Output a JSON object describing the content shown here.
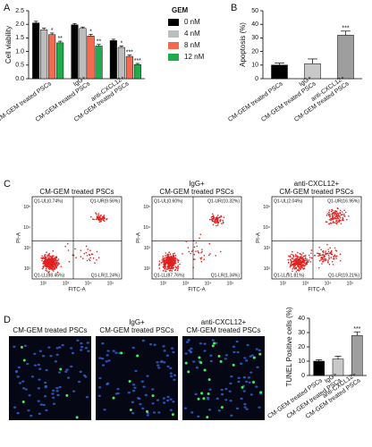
{
  "panel_labels": [
    "A",
    "B",
    "C",
    "D"
  ],
  "chart_data": [
    {
      "type": "bar",
      "ylabel": "Cell viability",
      "categories": [
        [
          "CM-GEM treated PSCs"
        ],
        [
          "IgG+",
          "CM-GEM treated PSCs"
        ],
        [
          "anti-CXCL12+",
          "CM-GEM treated PSCs"
        ]
      ],
      "legend_title": "GEM",
      "series": [
        {
          "name": "0 nM",
          "color": "#000000",
          "values": [
            2.05,
            1.98,
            1.4
          ],
          "errors": [
            0.06,
            0.05,
            0.05
          ],
          "annotations": [
            null,
            null,
            null
          ]
        },
        {
          "name": "4 nM",
          "color": "#bdbdbd",
          "values": [
            1.8,
            1.85,
            1.15
          ],
          "errors": [
            0.06,
            0.05,
            0.05
          ],
          "annotations": [
            null,
            null,
            "*"
          ]
        },
        {
          "name": "8 nM",
          "color": "#f26b4f",
          "values": [
            1.62,
            1.57,
            0.82
          ],
          "errors": [
            0.06,
            0.06,
            0.05
          ],
          "annotations": [
            "*",
            "*",
            "***"
          ]
        },
        {
          "name": "12 nM",
          "color": "#1fad4b",
          "values": [
            1.32,
            1.2,
            0.52
          ],
          "errors": [
            0.06,
            0.06,
            0.04
          ],
          "annotations": [
            "**",
            "**",
            "***"
          ]
        }
      ],
      "ylim": [
        0,
        2.5
      ],
      "yticks": [
        {
          "value": 0,
          "label": "0.0"
        },
        {
          "value": 0.5,
          "label": "0.5"
        },
        {
          "value": 1,
          "label": "1.0"
        },
        {
          "value": 1.5,
          "label": "1.5"
        },
        {
          "value": 2,
          "label": "2.0"
        },
        {
          "value": 2.5,
          "label": "2.5"
        }
      ]
    },
    {
      "type": "bar",
      "ylabel": "Apoptosis (%)",
      "categories": [
        [
          "CM-GEM treated PSCs"
        ],
        [
          "IgG+",
          "CM-GEM treated PSCs"
        ],
        [
          "anti-CXCL12+",
          "CM-GEM treated PSCs"
        ]
      ],
      "values": [
        10,
        11,
        32
      ],
      "errors": [
        1.5,
        3.5,
        3
      ],
      "annotations": [
        null,
        null,
        "***"
      ],
      "colors": [
        "#000000",
        "#c8c8c8",
        "#9e9e9e"
      ],
      "ylim": [
        0,
        50
      ],
      "yticks": [
        0,
        10,
        20,
        30,
        40,
        50
      ]
    },
    {
      "type": "bar",
      "ylabel": "TUNEL Positive cells (%)",
      "categories": [
        [
          "CM-GEM treated PSCs"
        ],
        [
          "IgG+",
          "CM-GEM treated PSCs"
        ],
        [
          "anti-CXCL12+",
          "CM-GEM treated PSCs"
        ]
      ],
      "values": [
        10,
        11.5,
        28
      ],
      "errors": [
        1,
        2,
        2.5
      ],
      "annotations": [
        null,
        null,
        "***"
      ],
      "colors": [
        "#000000",
        "#c8c8c8",
        "#9e9e9e"
      ],
      "ylim": [
        0,
        40
      ],
      "yticks": [
        0,
        10,
        20,
        30,
        40
      ]
    }
  ],
  "flow_cytometry": {
    "x_label": "FITC-A",
    "y_label": "PI-A",
    "axis_ticks": [
      "10²",
      "10³",
      "10⁴",
      "10⁵"
    ],
    "plots": [
      {
        "title": [
          "CM-GEM treated PSCs"
        ],
        "UL": "Q1-UL(0.74%)",
        "UR": "Q1-UR(9.56%)",
        "LL": "Q1-LL(88.45%)",
        "LR": "Q1-LR(1.24%)"
      },
      {
        "title": [
          "IgG+",
          "CM-GEM treated PSCs"
        ],
        "UL": "Q1-UL(0.60%)",
        "UR": "Q1-UR(10.32%)",
        "LL": "Q1-LL(87.76%)",
        "LR": "Q1-LR(1.34%)"
      },
      {
        "title": [
          "anti-CXCL12+",
          "CM-GEM treated PSCs"
        ],
        "UL": "Q1-UL(2.04%)",
        "UR": "Q1-UR(16.95%)",
        "LL": "Q1-LL(61.81%)",
        "LR": "Q1-LR(19.21%)"
      }
    ]
  },
  "microscopy": {
    "titles": [
      [
        "CM-GEM treated PSCs"
      ],
      [
        "IgG+",
        "CM-GEM treated PSCs"
      ],
      [
        "anti-CXCL12+",
        "CM-GEM treated PSCs"
      ]
    ]
  }
}
